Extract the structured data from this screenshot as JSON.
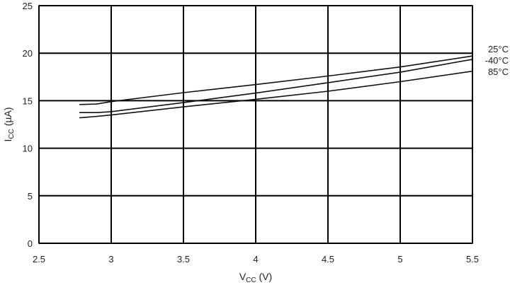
{
  "chart_data": {
    "type": "line",
    "xlabel": {
      "main": "V",
      "sub": "CC",
      "unit": " (V)"
    },
    "ylabel": {
      "main": "I",
      "sub": "CC",
      "unit": " (µA)"
    },
    "xlim": [
      2.5,
      5.5
    ],
    "ylim": [
      0,
      25
    ],
    "xticks": [
      2.5,
      3,
      3.5,
      4,
      4.5,
      5,
      5.5
    ],
    "xtick_labels": [
      "2.5",
      "3",
      "3.5",
      "4",
      "4.5",
      "5",
      "5.5"
    ],
    "yticks": [
      0,
      5,
      10,
      15,
      20,
      25
    ],
    "ytick_labels": [
      "0",
      "5",
      "10",
      "15",
      "20",
      "25"
    ],
    "grid": true,
    "series": [
      {
        "name": "25°C",
        "x": [
          2.78,
          2.9,
          3.0,
          3.5,
          4.0,
          4.5,
          5.0,
          5.5
        ],
        "y": [
          14.6,
          14.65,
          14.9,
          15.85,
          16.7,
          17.6,
          18.55,
          19.7
        ]
      },
      {
        "name": "-40°C",
        "x": [
          2.78,
          2.9,
          3.0,
          3.5,
          4.0,
          4.5,
          5.0,
          5.5
        ],
        "y": [
          13.75,
          13.75,
          13.85,
          14.8,
          15.8,
          16.9,
          18.0,
          19.35
        ]
      },
      {
        "name": "85°C",
        "x": [
          2.78,
          2.9,
          3.0,
          3.5,
          4.0,
          4.5,
          5.0,
          5.5
        ],
        "y": [
          13.2,
          13.35,
          13.5,
          14.35,
          15.15,
          16.0,
          17.0,
          18.1
        ]
      }
    ]
  }
}
